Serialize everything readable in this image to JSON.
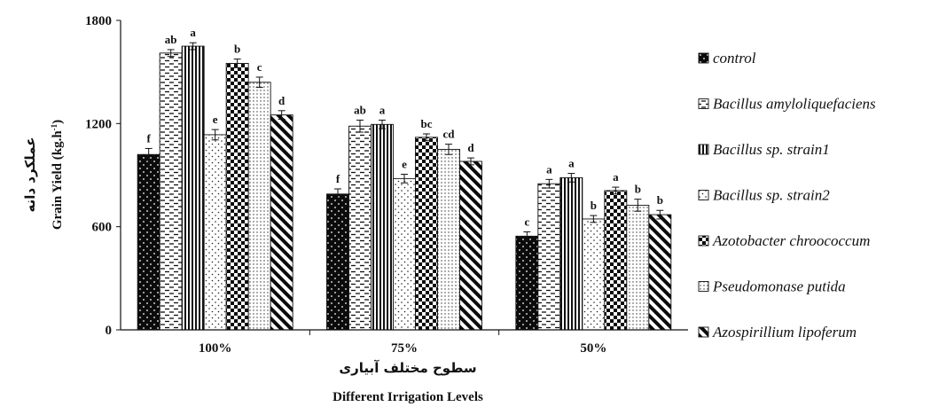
{
  "chart_data": {
    "type": "bar",
    "categories": [
      "100%",
      "75%",
      "50%"
    ],
    "series": [
      {
        "name": "control",
        "values": [
          1020,
          790,
          545
        ],
        "errors": [
          35,
          30,
          25
        ],
        "letters": [
          "f",
          "f",
          "c"
        ],
        "pattern": "dots-dark",
        "italic": true
      },
      {
        "name": "Bacillus amyloliquefaciens",
        "values": [
          1610,
          1185,
          850
        ],
        "errors": [
          20,
          35,
          25
        ],
        "letters": [
          "ab",
          "ab",
          "a"
        ],
        "pattern": "dashes",
        "italic": true
      },
      {
        "name": "Bacillus sp. strain1",
        "values": [
          1650,
          1195,
          885
        ],
        "errors": [
          20,
          25,
          25
        ],
        "letters": [
          "a",
          "a",
          "a"
        ],
        "pattern": "vlines",
        "italic": true
      },
      {
        "name": "Bacillus sp. strain2",
        "values": [
          1135,
          880,
          645
        ],
        "errors": [
          30,
          25,
          20
        ],
        "letters": [
          "e",
          "e",
          "b"
        ],
        "pattern": "dots-light",
        "italic": true
      },
      {
        "name": "Azotobacter chroococcum",
        "values": [
          1550,
          1120,
          810
        ],
        "errors": [
          25,
          20,
          20
        ],
        "letters": [
          "b",
          "bc",
          "a"
        ],
        "pattern": "checker",
        "italic": true
      },
      {
        "name": "Pseudomonase putida",
        "values": [
          1440,
          1050,
          725
        ],
        "errors": [
          30,
          30,
          35
        ],
        "letters": [
          "c",
          "cd",
          "b"
        ],
        "pattern": "dots-grid",
        "italic": true
      },
      {
        "name": "Azospirillium lipoferum",
        "values": [
          1250,
          980,
          670
        ],
        "errors": [
          25,
          20,
          25
        ],
        "letters": [
          "d",
          "d",
          "b"
        ],
        "pattern": "diagonal",
        "italic": true
      }
    ],
    "yticks": [
      0,
      600,
      1200,
      1800
    ],
    "ylim": [
      0,
      1800
    ],
    "ylabel": "Grain Yield  (kg.h",
    "ylabel_sup": "-1",
    "ylabel_close": ")",
    "ylabel_fa": "عملکرد دانه",
    "xlabel_fa": "سطوح مختلف آبیاری",
    "xlabel": "Different Irrigation Levels",
    "legend_position": "right",
    "grid": false
  }
}
